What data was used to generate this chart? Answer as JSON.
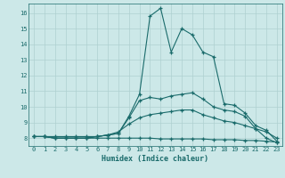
{
  "x_values": [
    0,
    1,
    2,
    3,
    4,
    5,
    6,
    7,
    8,
    9,
    10,
    11,
    12,
    13,
    14,
    15,
    16,
    17,
    18,
    19,
    20,
    21,
    22,
    23
  ],
  "line1": [
    8.1,
    8.1,
    8.1,
    8.1,
    8.1,
    8.1,
    8.1,
    8.2,
    8.3,
    9.4,
    10.8,
    15.8,
    16.3,
    13.5,
    15.0,
    14.6,
    13.5,
    13.2,
    10.2,
    10.1,
    9.6,
    8.8,
    8.5,
    7.8
  ],
  "line2": [
    8.1,
    8.1,
    8.0,
    8.0,
    8.0,
    8.0,
    8.1,
    8.2,
    8.3,
    9.3,
    10.4,
    10.6,
    10.5,
    10.7,
    10.8,
    10.9,
    10.5,
    10.0,
    9.8,
    9.7,
    9.4,
    8.6,
    8.0,
    7.7
  ],
  "line3": [
    8.1,
    8.1,
    8.0,
    8.0,
    8.0,
    8.0,
    8.1,
    8.2,
    8.4,
    8.9,
    9.3,
    9.5,
    9.6,
    9.7,
    9.8,
    9.8,
    9.5,
    9.3,
    9.1,
    9.0,
    8.8,
    8.6,
    8.4,
    8.0
  ],
  "line4": [
    8.1,
    8.1,
    8.0,
    8.0,
    8.0,
    8.0,
    8.0,
    8.0,
    8.0,
    8.0,
    8.0,
    8.0,
    7.95,
    7.95,
    7.95,
    7.95,
    7.95,
    7.9,
    7.9,
    7.9,
    7.85,
    7.85,
    7.8,
    7.75
  ],
  "bg_color": "#cce8e8",
  "grid_color": "#aed0d0",
  "line_color": "#1a6b6b",
  "xlabel": "Humidex (Indice chaleur)",
  "ylim": [
    7.5,
    16.6
  ],
  "xlim": [
    -0.5,
    23.5
  ],
  "yticks": [
    8,
    9,
    10,
    11,
    12,
    13,
    14,
    15,
    16
  ],
  "xticks": [
    0,
    1,
    2,
    3,
    4,
    5,
    6,
    7,
    8,
    9,
    10,
    11,
    12,
    13,
    14,
    15,
    16,
    17,
    18,
    19,
    20,
    21,
    22,
    23
  ]
}
